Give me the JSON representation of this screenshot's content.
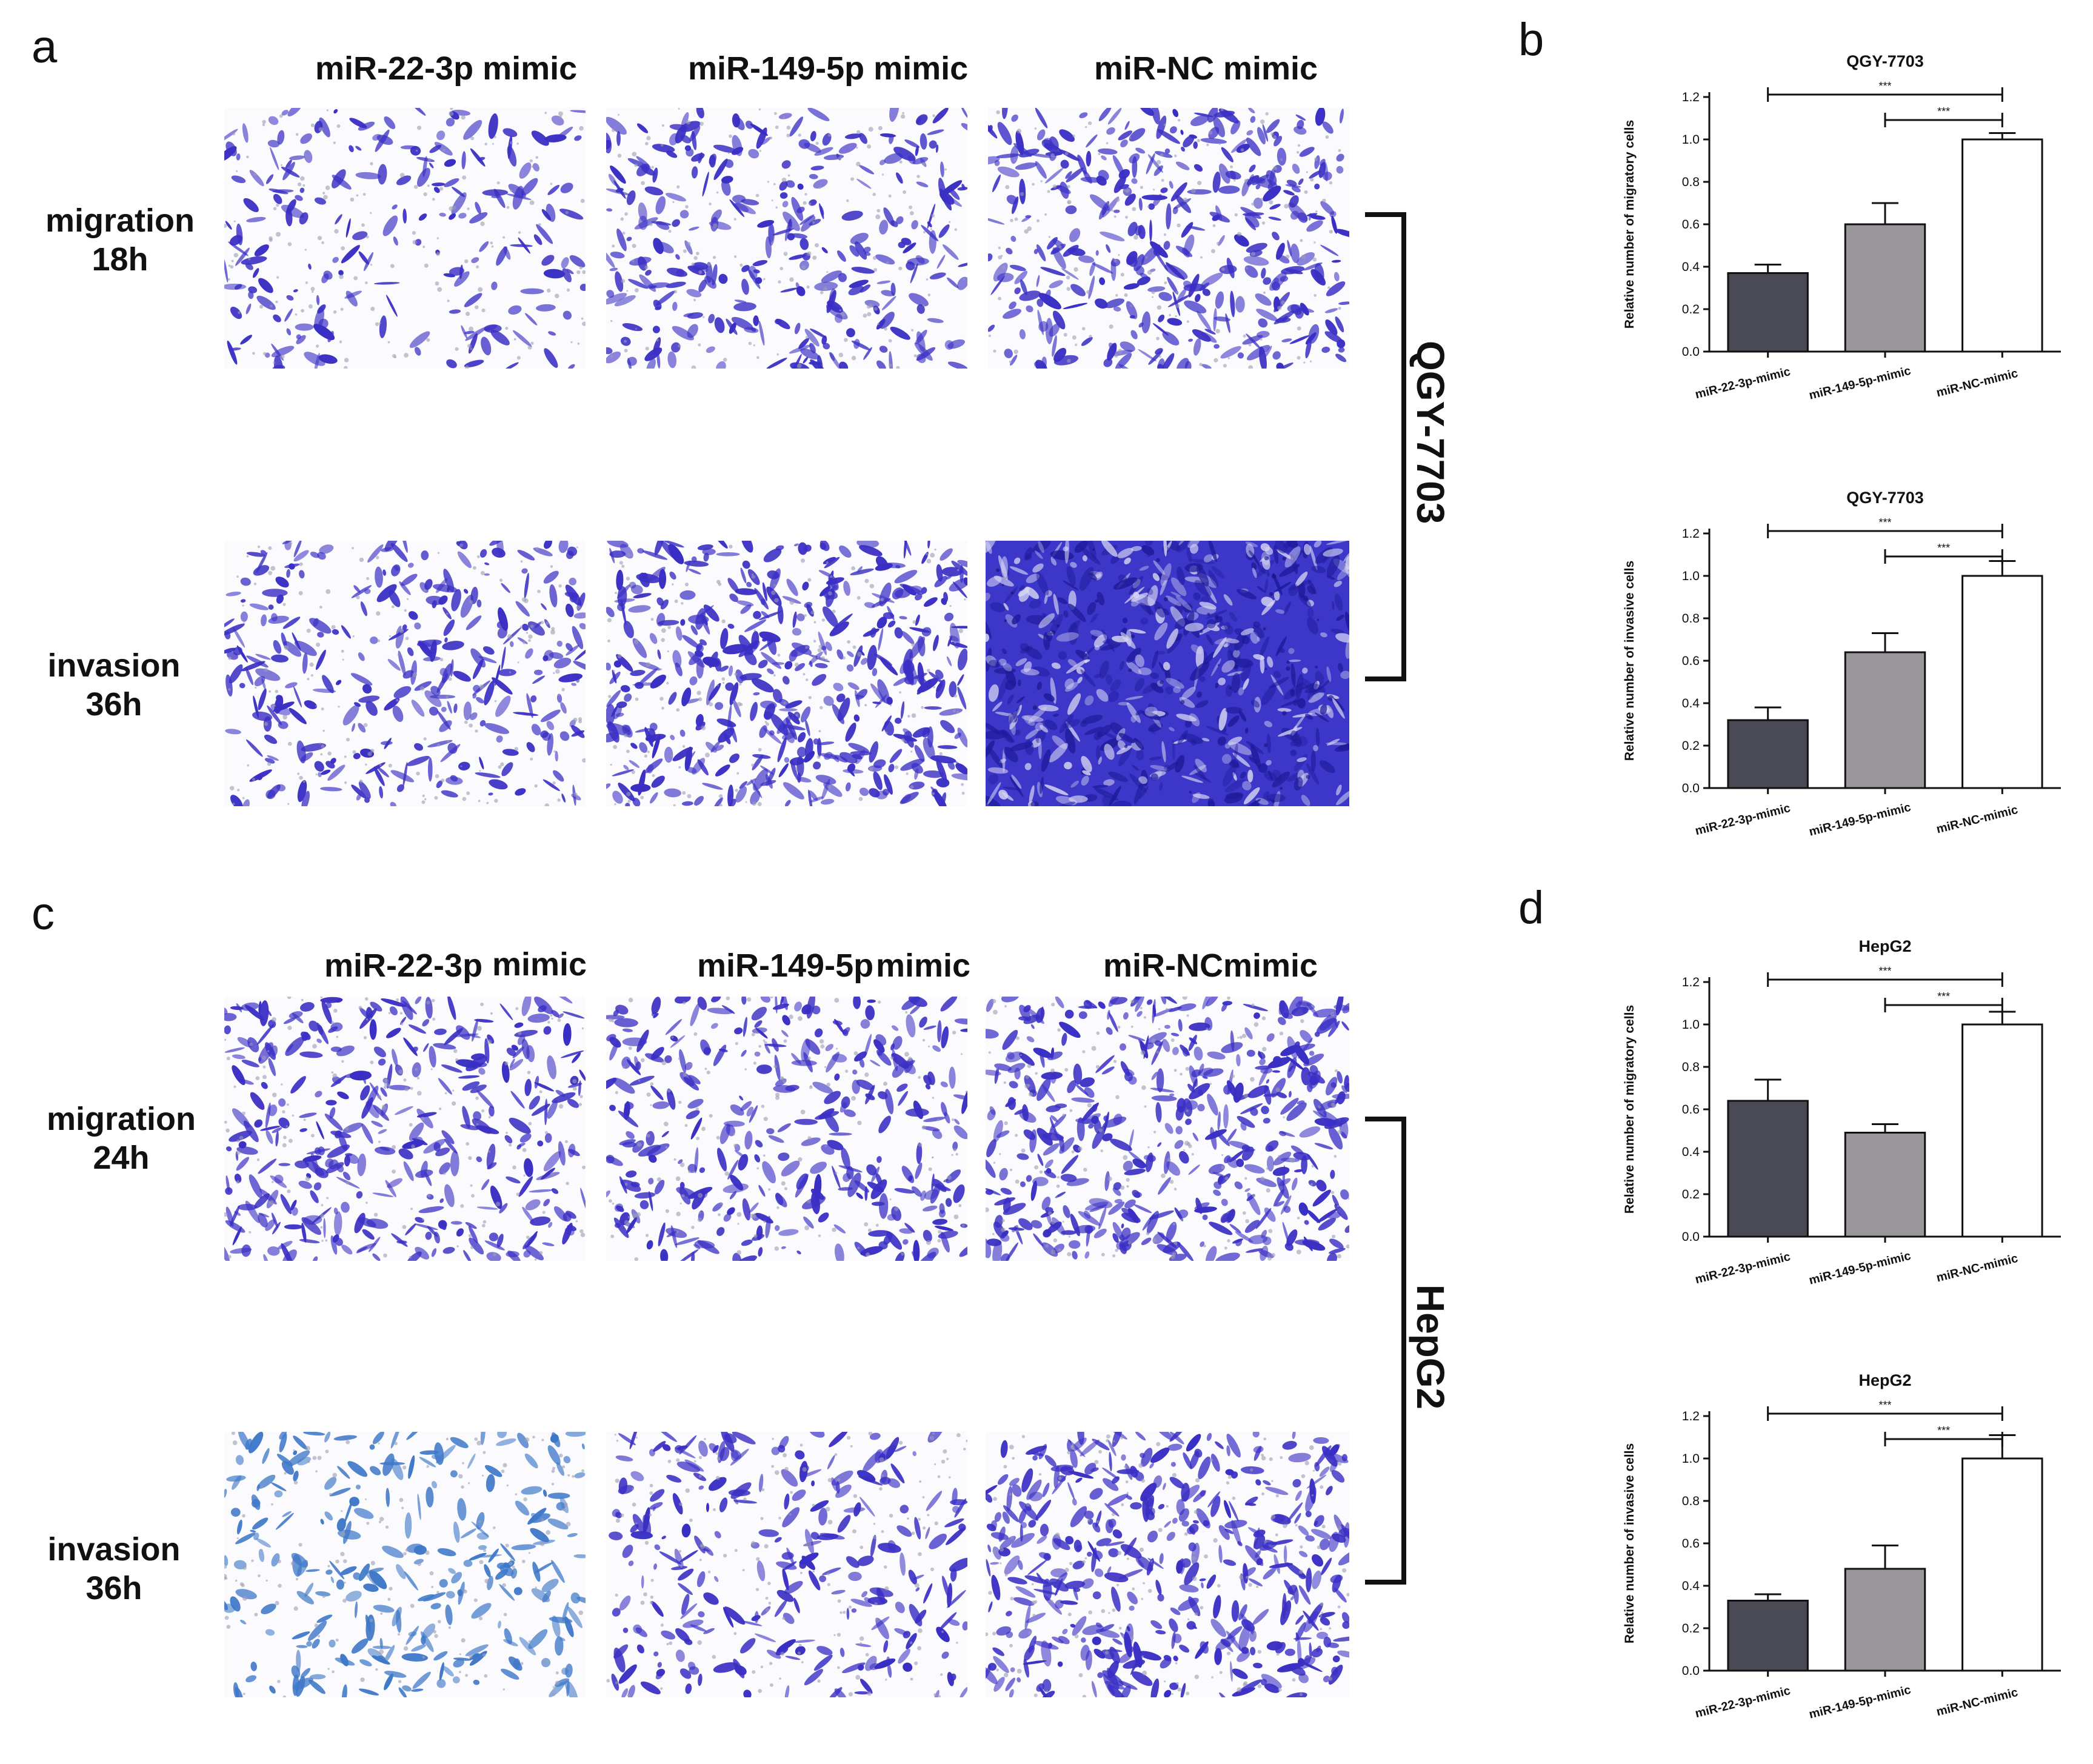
{
  "figure": {
    "panels": {
      "a": "a",
      "b": "b",
      "c": "c",
      "d": "d"
    },
    "top_block": {
      "headers": [
        "miR-22-3p mimic",
        "miR-149-5p mimic",
        "miR-NC mimic"
      ],
      "rows": [
        {
          "label_line1": "migration",
          "label_line2": "18h"
        },
        {
          "label_line1": "invasion",
          "label_line2": "36h"
        }
      ],
      "cell_line": "QGY-7703"
    },
    "bottom_block": {
      "headers": [
        "miR-22-3p",
        "mimic",
        "miR-149-5p",
        "mimic",
        "miR-NC",
        "mimic"
      ],
      "rows": [
        {
          "label_line1": "migration",
          "label_line2": "24h"
        },
        {
          "label_line1": "invasion",
          "label_line2": "36h"
        }
      ],
      "cell_line": "HepG2"
    },
    "colors": {
      "stain": "#3a2fc4",
      "stain_light": "#3f78c8",
      "bar1": "#4a4a55",
      "bar2": "#9b959c",
      "bar3": "#ffffff"
    }
  },
  "chart_data": [
    {
      "type": "bar",
      "title": "QGY-7703",
      "ylabel": "Relative number of migratory cells",
      "categories": [
        "miR-22-3p-mimic",
        "miR-149-5p-mimic",
        "miR-NC-mimic"
      ],
      "values": [
        0.37,
        0.6,
        1.0
      ],
      "errors": [
        0.04,
        0.1,
        0.03
      ],
      "ylim": [
        0,
        1.2
      ],
      "yticks": [
        "0.0",
        "0.2",
        "0.4",
        "0.6",
        "0.8",
        "1.0",
        "1.2"
      ],
      "significance": [
        {
          "from": 0,
          "to": 2,
          "label": "***"
        },
        {
          "from": 1,
          "to": 2,
          "label": "***"
        }
      ]
    },
    {
      "type": "bar",
      "title": "QGY-7703",
      "ylabel": "Relative number of invasive cells",
      "categories": [
        "miR-22-3p-mimic",
        "miR-149-5p-mimic",
        "miR-NC-mimic"
      ],
      "values": [
        0.32,
        0.64,
        1.0
      ],
      "errors": [
        0.06,
        0.09,
        0.07
      ],
      "ylim": [
        0,
        1.2
      ],
      "yticks": [
        "0.0",
        "0.2",
        "0.4",
        "0.6",
        "0.8",
        "1.0",
        "1.2"
      ],
      "significance": [
        {
          "from": 0,
          "to": 2,
          "label": "***"
        },
        {
          "from": 1,
          "to": 2,
          "label": "***"
        }
      ]
    },
    {
      "type": "bar",
      "title": "HepG2",
      "ylabel": "Relative number of migratory cells",
      "categories": [
        "miR-22-3p-mimic",
        "miR-149-5p-mimic",
        "miR-NC-mimic"
      ],
      "values": [
        0.64,
        0.49,
        1.0
      ],
      "errors": [
        0.1,
        0.04,
        0.06
      ],
      "ylim": [
        0,
        1.2
      ],
      "yticks": [
        "0.0",
        "0.2",
        "0.4",
        "0.6",
        "0.8",
        "1.0",
        "1.2"
      ],
      "significance": [
        {
          "from": 0,
          "to": 2,
          "label": "***"
        },
        {
          "from": 1,
          "to": 2,
          "label": "***"
        }
      ]
    },
    {
      "type": "bar",
      "title": "HepG2",
      "ylabel": "Relative number of invasive cells",
      "categories": [
        "miR-22-3p-mimic",
        "miR-149-5p-mimic",
        "miR-NC-mimic"
      ],
      "values": [
        0.33,
        0.48,
        1.0
      ],
      "errors": [
        0.03,
        0.11,
        0.11
      ],
      "ylim": [
        0,
        1.2
      ],
      "yticks": [
        "0.0",
        "0.2",
        "0.4",
        "0.6",
        "0.8",
        "1.0",
        "1.2"
      ],
      "significance": [
        {
          "from": 0,
          "to": 2,
          "label": "***"
        },
        {
          "from": 1,
          "to": 2,
          "label": "***"
        }
      ]
    }
  ]
}
